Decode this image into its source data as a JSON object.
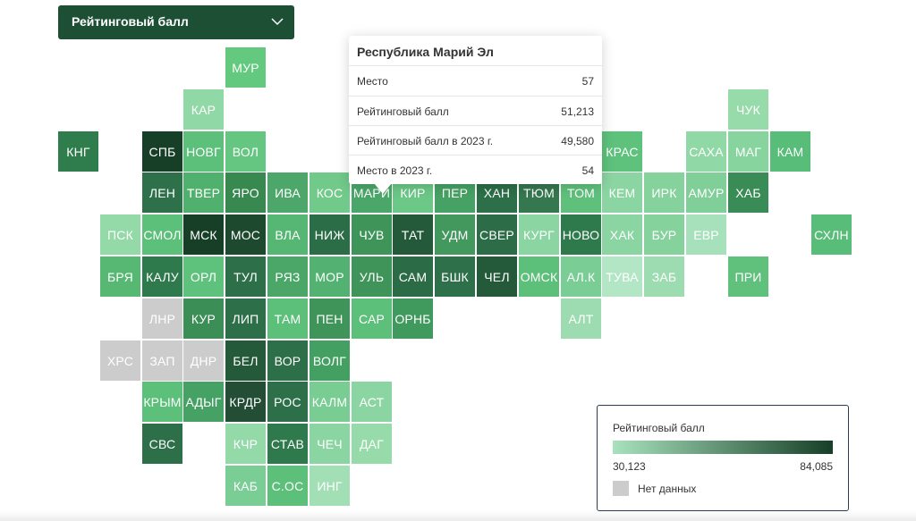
{
  "selector": {
    "label": "Рейтинговый балл",
    "icon": "chevron-down-icon"
  },
  "colors": {
    "no_data": "#cccccc",
    "scale_min": "#a8e2bd",
    "scale_max": "#173f27",
    "text": "#ffffff",
    "dropdown_bg": "#1d4f35"
  },
  "tooltip": {
    "title": "Республика Марий Эл",
    "rows": [
      {
        "label": "Место",
        "value": "57"
      },
      {
        "label": "Рейтинговый балл",
        "value": "51,213"
      },
      {
        "label": "Рейтинговый балл в 2023 г.",
        "value": "49,580"
      },
      {
        "label": "Место в 2023 г.",
        "value": "54"
      }
    ]
  },
  "legend": {
    "title": "Рейтинговый балл",
    "min_label": "30,123",
    "max_label": "84,085",
    "no_data_label": "Нет данных"
  },
  "regions": [
    {
      "code": "МУР",
      "row": 1,
      "col": 5,
      "fill": "#63c97e"
    },
    {
      "code": "КАР",
      "row": 2,
      "col": 4,
      "fill": "#90d8a6"
    },
    {
      "code": "ЧУК",
      "row": 2,
      "col": 17,
      "fill": "#98dbab"
    },
    {
      "code": "КНГ",
      "row": 3,
      "col": 1,
      "fill": "#2f7d4c"
    },
    {
      "code": "СПБ",
      "row": 3,
      "col": 3,
      "fill": "#173f27"
    },
    {
      "code": "НОВГ",
      "row": 3,
      "col": 4,
      "fill": "#5cbf7a"
    },
    {
      "code": "ВОЛ",
      "row": 3,
      "col": 5,
      "fill": "#64c680"
    },
    {
      "code": "КРАС",
      "row": 3,
      "col": 14,
      "fill": "#5ec27c"
    },
    {
      "code": "САХА",
      "row": 3,
      "col": 16,
      "fill": "#90d8a6"
    },
    {
      "code": "МАГ",
      "row": 3,
      "col": 17,
      "fill": "#87d49e"
    },
    {
      "code": "КАМ",
      "row": 3,
      "col": 18,
      "fill": "#58bd78"
    },
    {
      "code": "ЛЕН",
      "row": 4,
      "col": 3,
      "fill": "#2d704a"
    },
    {
      "code": "ТВЕР",
      "row": 4,
      "col": 4,
      "fill": "#50b06e"
    },
    {
      "code": "ЯРО",
      "row": 4,
      "col": 5,
      "fill": "#38894f"
    },
    {
      "code": "ИВА",
      "row": 4,
      "col": 6,
      "fill": "#4ea76a"
    },
    {
      "code": "КОС",
      "row": 4,
      "col": 7,
      "fill": "#71c98a"
    },
    {
      "code": "МАРИ",
      "row": 4,
      "col": 8,
      "fill": "#4ba769"
    },
    {
      "code": "КИР",
      "row": 4,
      "col": 9,
      "fill": "#6bc887"
    },
    {
      "code": "ПЕР",
      "row": 4,
      "col": 10,
      "fill": "#46a264"
    },
    {
      "code": "ХАН",
      "row": 4,
      "col": 11,
      "fill": "#2c6f48"
    },
    {
      "code": "ТЮМ",
      "row": 4,
      "col": 12,
      "fill": "#35774f"
    },
    {
      "code": "ТОМ",
      "row": 4,
      "col": 13,
      "fill": "#5fc07c"
    },
    {
      "code": "КЕМ",
      "row": 4,
      "col": 14,
      "fill": "#8ad5a1"
    },
    {
      "code": "ИРК",
      "row": 4,
      "col": 15,
      "fill": "#86d29d"
    },
    {
      "code": "АМУР",
      "row": 4,
      "col": 16,
      "fill": "#80cf98"
    },
    {
      "code": "ХАБ",
      "row": 4,
      "col": 17,
      "fill": "#3a8c56"
    },
    {
      "code": "ПСК",
      "row": 5,
      "col": 2,
      "fill": "#94d9a8"
    },
    {
      "code": "СМОЛ",
      "row": 5,
      "col": 3,
      "fill": "#5dc07a"
    },
    {
      "code": "МСК",
      "row": 5,
      "col": 4,
      "fill": "#173f27"
    },
    {
      "code": "МОС",
      "row": 5,
      "col": 5,
      "fill": "#1d4a2f"
    },
    {
      "code": "ВЛА",
      "row": 5,
      "col": 6,
      "fill": "#56b774"
    },
    {
      "code": "НИЖ",
      "row": 5,
      "col": 7,
      "fill": "#2b6d46"
    },
    {
      "code": "ЧУВ",
      "row": 5,
      "col": 8,
      "fill": "#3f9459"
    },
    {
      "code": "ТАТ",
      "row": 5,
      "col": 9,
      "fill": "#24593a"
    },
    {
      "code": "УДМ",
      "row": 5,
      "col": 10,
      "fill": "#43985e"
    },
    {
      "code": "СВЕР",
      "row": 5,
      "col": 11,
      "fill": "#2c6c46"
    },
    {
      "code": "КУРГ",
      "row": 5,
      "col": 12,
      "fill": "#8bd5a2"
    },
    {
      "code": "НОВО",
      "row": 5,
      "col": 13,
      "fill": "#2f7a4c"
    },
    {
      "code": "ХАК",
      "row": 5,
      "col": 14,
      "fill": "#8bd5a2"
    },
    {
      "code": "БУР",
      "row": 5,
      "col": 15,
      "fill": "#86d29d"
    },
    {
      "code": "ЕВР",
      "row": 5,
      "col": 16,
      "fill": "#a7e1bc"
    },
    {
      "code": "СХЛН",
      "row": 5,
      "col": 19,
      "fill": "#58bd78"
    },
    {
      "code": "БРЯ",
      "row": 6,
      "col": 2,
      "fill": "#56b873"
    },
    {
      "code": "КАЛУ",
      "row": 6,
      "col": 3,
      "fill": "#2f7a4c"
    },
    {
      "code": "ОРЛ",
      "row": 6,
      "col": 4,
      "fill": "#5ec17c"
    },
    {
      "code": "ТУЛ",
      "row": 6,
      "col": 5,
      "fill": "#2c6f48"
    },
    {
      "code": "РЯЗ",
      "row": 6,
      "col": 6,
      "fill": "#4ba768"
    },
    {
      "code": "МОР",
      "row": 6,
      "col": 7,
      "fill": "#53b271"
    },
    {
      "code": "УЛЬ",
      "row": 6,
      "col": 8,
      "fill": "#3f9459"
    },
    {
      "code": "САМ",
      "row": 6,
      "col": 9,
      "fill": "#2b6c46"
    },
    {
      "code": "БШК",
      "row": 6,
      "col": 10,
      "fill": "#2d704a"
    },
    {
      "code": "ЧЕЛ",
      "row": 6,
      "col": 11,
      "fill": "#24593a"
    },
    {
      "code": "ОМСК",
      "row": 6,
      "col": 12,
      "fill": "#5cbf7a"
    },
    {
      "code": "АЛ.К",
      "row": 6,
      "col": 13,
      "fill": "#7acd94"
    },
    {
      "code": "ТУВА",
      "row": 6,
      "col": 14,
      "fill": "#b3e6c4"
    },
    {
      "code": "ЗАБ",
      "row": 6,
      "col": 15,
      "fill": "#9ddcb0"
    },
    {
      "code": "ПРИ",
      "row": 6,
      "col": 17,
      "fill": "#60c17c"
    },
    {
      "code": "ЛНР",
      "row": 7,
      "col": 3,
      "fill": "#cccccc"
    },
    {
      "code": "КУР",
      "row": 7,
      "col": 4,
      "fill": "#3b8f56"
    },
    {
      "code": "ЛИП",
      "row": 7,
      "col": 5,
      "fill": "#2c6f48"
    },
    {
      "code": "ТАМ",
      "row": 7,
      "col": 6,
      "fill": "#5cbf7a"
    },
    {
      "code": "ПЕН",
      "row": 7,
      "col": 7,
      "fill": "#3f9459"
    },
    {
      "code": "САР",
      "row": 7,
      "col": 8,
      "fill": "#5cbf7a"
    },
    {
      "code": "ОРНБ",
      "row": 7,
      "col": 9,
      "fill": "#409a5d"
    },
    {
      "code": "АЛТ",
      "row": 7,
      "col": 13,
      "fill": "#9ddcb0"
    },
    {
      "code": "ХРС",
      "row": 8,
      "col": 2,
      "fill": "#cccccc"
    },
    {
      "code": "ЗАП",
      "row": 8,
      "col": 3,
      "fill": "#cccccc"
    },
    {
      "code": "ДНР",
      "row": 8,
      "col": 4,
      "fill": "#cccccc"
    },
    {
      "code": "БЕЛ",
      "row": 8,
      "col": 5,
      "fill": "#24593a"
    },
    {
      "code": "ВОР",
      "row": 8,
      "col": 6,
      "fill": "#2c6f48"
    },
    {
      "code": "ВОЛГ",
      "row": 8,
      "col": 7,
      "fill": "#44a062"
    },
    {
      "code": "КРЫМ",
      "row": 9,
      "col": 3,
      "fill": "#5cbf7a"
    },
    {
      "code": "АДЫГ",
      "row": 9,
      "col": 4,
      "fill": "#46a264"
    },
    {
      "code": "КРДР",
      "row": 9,
      "col": 5,
      "fill": "#234d35"
    },
    {
      "code": "РОС",
      "row": 9,
      "col": 6,
      "fill": "#2c6f48"
    },
    {
      "code": "КАЛМ",
      "row": 9,
      "col": 7,
      "fill": "#79cd93"
    },
    {
      "code": "АСТ",
      "row": 9,
      "col": 8,
      "fill": "#8bd5a2"
    },
    {
      "code": "СВС",
      "row": 10,
      "col": 3,
      "fill": "#2c6f48"
    },
    {
      "code": "КЧР",
      "row": 10,
      "col": 5,
      "fill": "#94d9a8"
    },
    {
      "code": "СТАВ",
      "row": 10,
      "col": 6,
      "fill": "#2f7a4c"
    },
    {
      "code": "ЧЕЧ",
      "row": 10,
      "col": 7,
      "fill": "#8bd5a2"
    },
    {
      "code": "ДАГ",
      "row": 10,
      "col": 8,
      "fill": "#98dbab"
    },
    {
      "code": "КАБ",
      "row": 11,
      "col": 5,
      "fill": "#7acd94"
    },
    {
      "code": "С.ОС",
      "row": 11,
      "col": 6,
      "fill": "#5cbf7a"
    },
    {
      "code": "ИНГ",
      "row": 11,
      "col": 7,
      "fill": "#a2dfb5"
    }
  ]
}
